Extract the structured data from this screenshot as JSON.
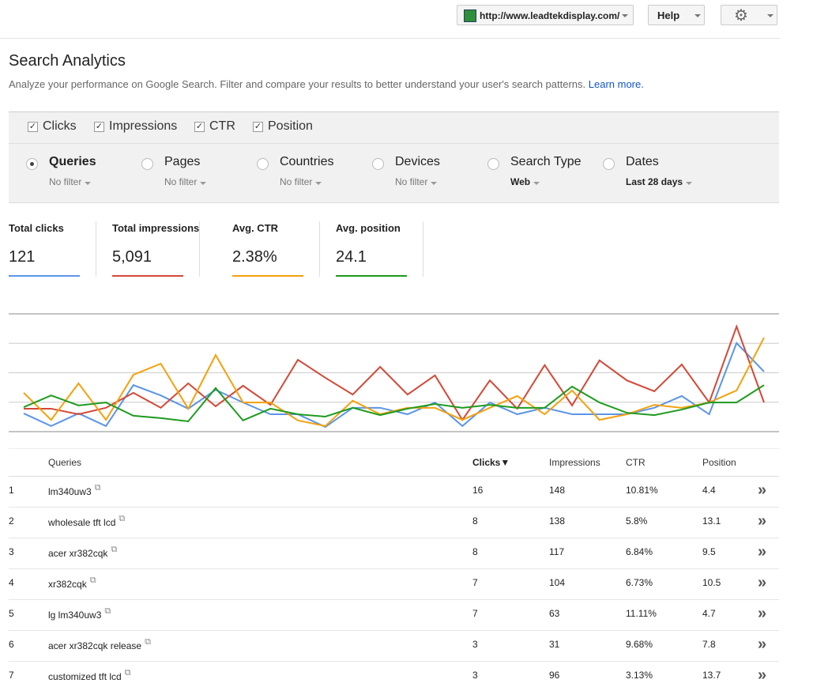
{
  "header": {
    "site": "http://www.leadtekdisplay.com/",
    "help": "Help"
  },
  "title": "Search Analytics",
  "description": "Analyze your performance on Google Search. Filter and compare your results to better understand your user's search patterns.",
  "learn_more": "Learn more.",
  "metric_toggles": [
    "Clicks",
    "Impressions",
    "CTR",
    "Position"
  ],
  "dimensions": [
    {
      "label": "Queries",
      "filter": "No filter",
      "selected": true
    },
    {
      "label": "Pages",
      "filter": "No filter",
      "selected": false
    },
    {
      "label": "Countries",
      "filter": "No filter",
      "selected": false
    },
    {
      "label": "Devices",
      "filter": "No filter",
      "selected": false
    },
    {
      "label": "Search Type",
      "filter": "Web",
      "selected": false
    },
    {
      "label": "Dates",
      "filter": "Last 28 days",
      "selected": false
    }
  ],
  "chart_data": {
    "type": "line",
    "ylim": [
      0,
      4
    ],
    "series": [
      {
        "name": "Total clicks",
        "total": "121",
        "color": "#5b95e8",
        "values": [
          0.62,
          0.19,
          0.62,
          0.19,
          1.58,
          1.23,
          0.78,
          1.42,
          0.99,
          0.59,
          0.59,
          0.16,
          0.81,
          0.81,
          0.59,
          0.99,
          0.19,
          0.99,
          0.59,
          0.81,
          0.59,
          0.59,
          0.59,
          0.81,
          1.21,
          0.59,
          3.01,
          2.04
        ]
      },
      {
        "name": "Total impressions",
        "total": "5,091",
        "color": "#d34836",
        "values": [
          0.78,
          0.78,
          0.59,
          0.81,
          1.32,
          0.81,
          1.64,
          0.86,
          1.56,
          0.91,
          2.44,
          1.83,
          1.26,
          2.2,
          1.26,
          1.91,
          0.4,
          1.74,
          0.78,
          2.26,
          0.89,
          2.42,
          1.74,
          1.37,
          2.28,
          0.99,
          3.57,
          0.99
        ]
      },
      {
        "name": "Avg. CTR",
        "total": "2.38%",
        "color": "#f4a10c",
        "values": [
          1.32,
          0.4,
          1.64,
          0.4,
          1.93,
          2.31,
          0.78,
          2.6,
          0.99,
          0.99,
          0.38,
          0.19,
          1.05,
          0.59,
          0.81,
          0.81,
          0.4,
          0.81,
          1.21,
          0.59,
          1.4,
          0.4,
          0.59,
          0.91,
          0.81,
          0.99,
          1.4,
          3.19
        ]
      },
      {
        "name": "Avg. position",
        "total": "24.1",
        "color": "#1e9b1e",
        "values": [
          0.83,
          1.23,
          0.89,
          0.99,
          0.54,
          0.46,
          0.35,
          1.48,
          0.38,
          0.78,
          0.59,
          0.51,
          0.81,
          0.56,
          0.78,
          0.94,
          0.81,
          0.91,
          0.81,
          0.81,
          1.53,
          0.99,
          0.64,
          0.56,
          0.75,
          0.99,
          0.99,
          1.58
        ]
      }
    ]
  },
  "table": {
    "columns": [
      "Queries",
      "Clicks▼",
      "Impressions",
      "CTR",
      "Position"
    ],
    "rows": [
      [
        1,
        "lm340uw3",
        16,
        148,
        "10.81%",
        4.4
      ],
      [
        2,
        "wholesale tft lcd",
        8,
        138,
        "5.8%",
        13.1
      ],
      [
        3,
        "acer xr382cqk",
        8,
        117,
        "6.84%",
        9.5
      ],
      [
        4,
        "xr382cqk",
        7,
        104,
        "6.73%",
        10.5
      ],
      [
        5,
        "lg lm340uw3",
        7,
        63,
        "11.11%",
        4.7
      ],
      [
        6,
        "acer xr382cqk release",
        3,
        31,
        "9.68%",
        7.8
      ],
      [
        7,
        "customized tft lcd",
        3,
        96,
        "3.13%",
        13.7
      ]
    ]
  }
}
